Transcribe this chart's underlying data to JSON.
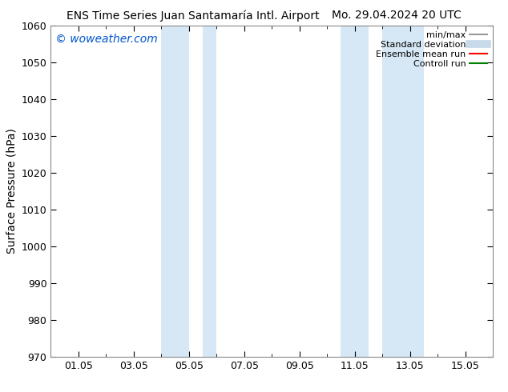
{
  "title_left": "ENS Time Series Juan Santamaría Intl. Airport",
  "title_right": "Mo. 29.04.2024 20 UTC",
  "ylabel": "Surface Pressure (hPa)",
  "ylim": [
    970,
    1060
  ],
  "yticks": [
    970,
    980,
    990,
    1000,
    1010,
    1020,
    1030,
    1040,
    1050,
    1060
  ],
  "xlim_start": 0.0,
  "xlim_end": 16.0,
  "xtick_positions": [
    1,
    3,
    5,
    7,
    9,
    11,
    13,
    15
  ],
  "xtick_labels": [
    "01.05",
    "03.05",
    "05.05",
    "07.05",
    "09.05",
    "11.05",
    "13.05",
    "15.05"
  ],
  "shade_bands": [
    {
      "x_start": 4.0,
      "x_end": 5.0
    },
    {
      "x_start": 5.5,
      "x_end": 6.0
    },
    {
      "x_start": 10.5,
      "x_end": 11.5
    },
    {
      "x_start": 12.0,
      "x_end": 13.5
    }
  ],
  "shade_color": "#d6e8f5",
  "background_color": "#ffffff",
  "watermark_text": "© woweather.com",
  "watermark_color": "#0055cc",
  "legend_items": [
    {
      "label": "min/max",
      "color": "#999999",
      "lw": 1.5,
      "style": "solid"
    },
    {
      "label": "Standard deviation",
      "color": "#c8daea",
      "lw": 7,
      "style": "solid"
    },
    {
      "label": "Ensemble mean run",
      "color": "#ff0000",
      "lw": 1.5,
      "style": "solid"
    },
    {
      "label": "Controll run",
      "color": "#008000",
      "lw": 1.5,
      "style": "solid"
    }
  ],
  "tick_color": "#000000",
  "spine_color": "#888888",
  "title_fontsize": 10,
  "label_fontsize": 9,
  "watermark_fontsize": 10,
  "legend_fontsize": 8
}
